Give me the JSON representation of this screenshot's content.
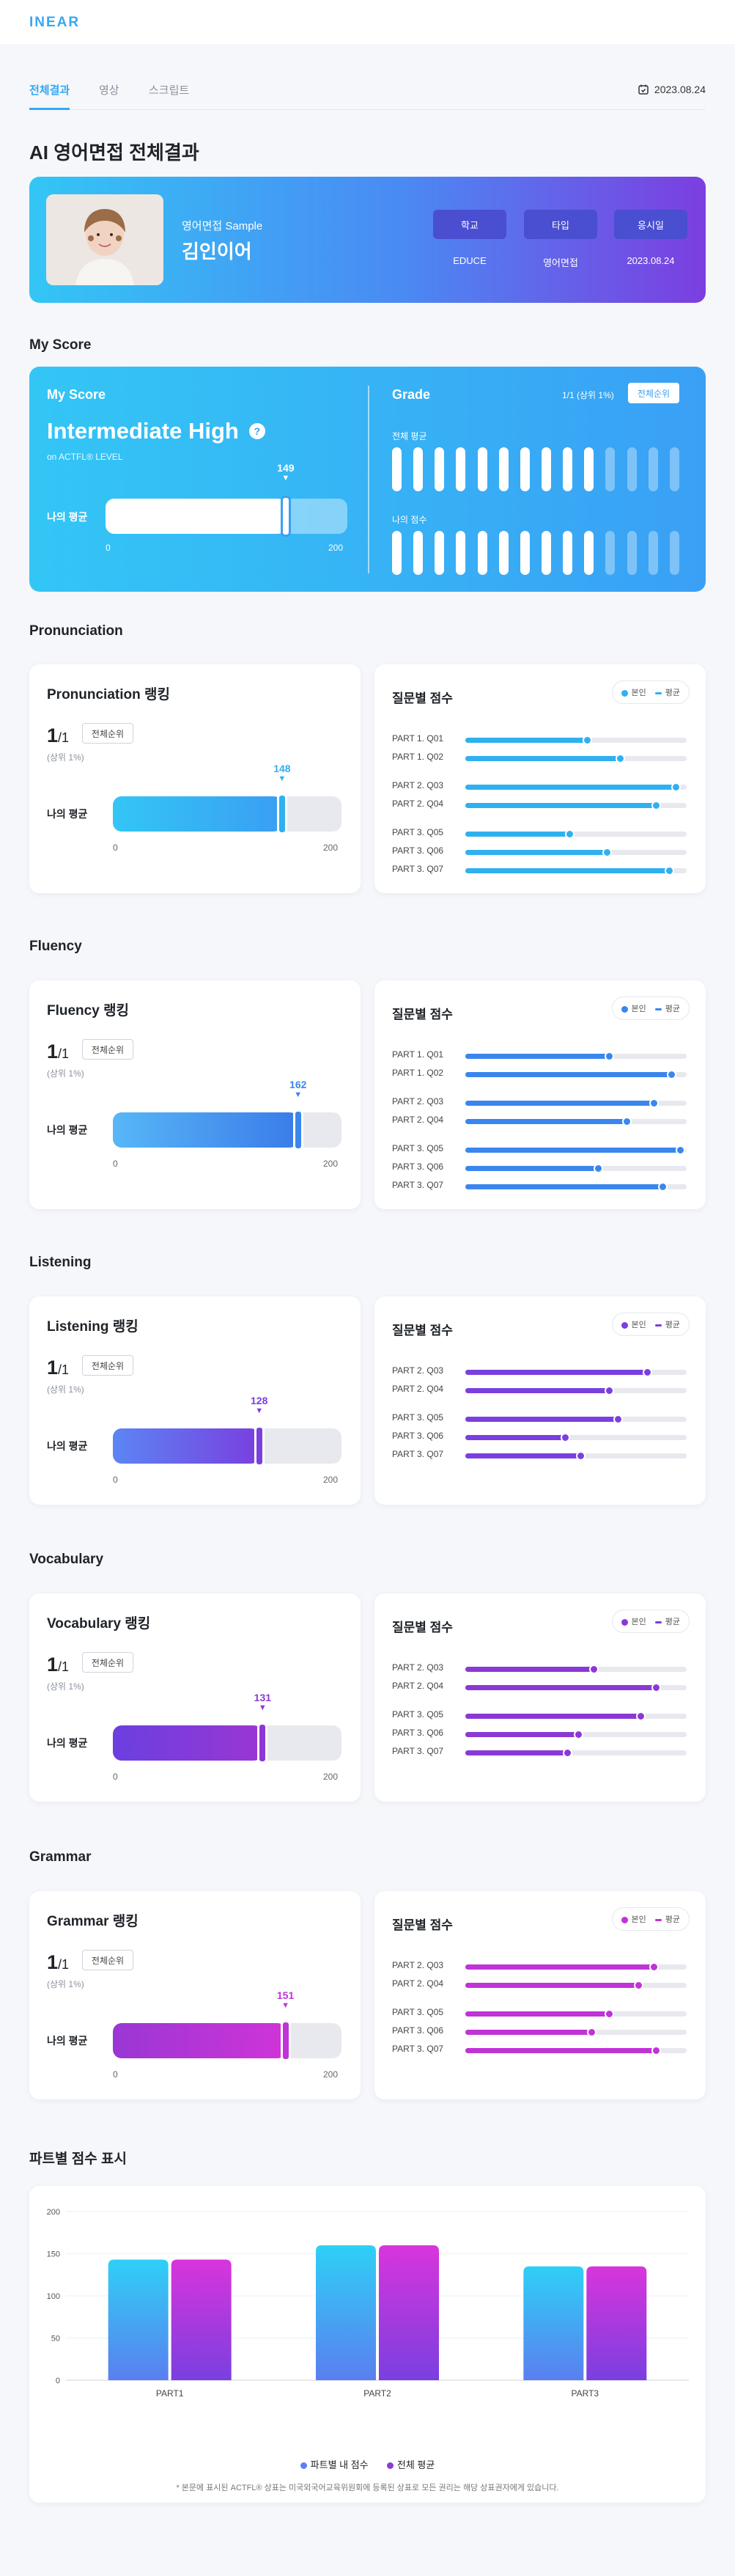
{
  "header": {
    "logo": "INEAR"
  },
  "tabs": [
    {
      "label": "전체결과",
      "active": true
    },
    {
      "label": "영상",
      "active": false
    },
    {
      "label": "스크립트",
      "active": false
    }
  ],
  "date": "2023.08.24",
  "page_title": "AI 영어면접 전체결과",
  "profile": {
    "subtitle": "영어면접 Sample",
    "name": "김인이어",
    "info": [
      {
        "label": "학교",
        "value": "EDUCE"
      },
      {
        "label": "타입",
        "value": "영어면접"
      },
      {
        "label": "응시일",
        "value": "2023.08.24"
      }
    ]
  },
  "my_score": {
    "section_title": "My Score",
    "label": "My Score",
    "level": "Intermediate High",
    "level_note": "on ACTFL® LEVEL",
    "avg_label": "나의 평균",
    "score": 149,
    "min": "0",
    "max": "200",
    "grade_title": "Grade",
    "rank": "1/1 (상위 1%)",
    "all_rank_button": "전체순위",
    "overall_avg_label": "전체 평균",
    "my_score_label": "나의 점수",
    "overall_avg_filled": 10,
    "my_score_filled": 10,
    "bar_total": 14
  },
  "legend_labels": {
    "self": "본인",
    "avg": "평균"
  },
  "question_title": "질문별 점수",
  "sections": [
    {
      "key": "pronunciation",
      "title": "Pronunciation",
      "ranking_title": "Pronunciation 랭킹",
      "rank_num": "1",
      "rank_den": "1",
      "all_rank_button": "전체순위",
      "top_pct": "(상위 1%)",
      "avg_label": "나의 평균",
      "score": 148,
      "min": "0",
      "max": "200",
      "color": "#2fb0f0",
      "fill": "linear-gradient(90deg,#33c6f5,#3a9ef3)",
      "questions": [
        {
          "label": "PART 1. Q01",
          "value": 55
        },
        {
          "label": "PART 1. Q02",
          "value": 70
        },
        {
          "label": "PART 2. Q03",
          "value": 95
        },
        {
          "label": "PART 2. Q04",
          "value": 86
        },
        {
          "label": "PART 3. Q05",
          "value": 47
        },
        {
          "label": "PART 3. Q06",
          "value": 64
        },
        {
          "label": "PART 3. Q07",
          "value": 92
        }
      ],
      "groups": [
        2,
        2,
        3
      ]
    },
    {
      "key": "fluency",
      "title": "Fluency",
      "ranking_title": "Fluency 랭킹",
      "rank_num": "1",
      "rank_den": "1",
      "all_rank_button": "전체순위",
      "top_pct": "(상위 1%)",
      "avg_label": "나의 평균",
      "score": 162,
      "min": "0",
      "max": "200",
      "color": "#3a86ee",
      "fill": "linear-gradient(90deg,#58b7f7,#3a7be9)",
      "questions": [
        {
          "label": "PART 1. Q01",
          "value": 65
        },
        {
          "label": "PART 1. Q02",
          "value": 93
        },
        {
          "label": "PART 2. Q03",
          "value": 85
        },
        {
          "label": "PART 2. Q04",
          "value": 73
        },
        {
          "label": "PART 3. Q05",
          "value": 97
        },
        {
          "label": "PART 3. Q06",
          "value": 60
        },
        {
          "label": "PART 3. Q07",
          "value": 89
        }
      ],
      "groups": [
        2,
        2,
        3
      ]
    },
    {
      "key": "listening",
      "title": "Listening",
      "ranking_title": "Listening 랭킹",
      "rank_num": "1",
      "rank_den": "1",
      "all_rank_button": "전체순위",
      "top_pct": "(상위 1%)",
      "avg_label": "나의 평균",
      "score": 128,
      "min": "0",
      "max": "200",
      "color": "#7a3fdf",
      "fill": "linear-gradient(90deg,#5b85f4,#7a3fdf)",
      "questions": [
        {
          "label": "PART 2. Q03",
          "value": 82
        },
        {
          "label": "PART 2. Q04",
          "value": 65
        },
        {
          "label": "PART 3. Q05",
          "value": 69
        },
        {
          "label": "PART 3. Q06",
          "value": 45
        },
        {
          "label": "PART 3. Q07",
          "value": 52
        }
      ],
      "groups": [
        2,
        3
      ]
    },
    {
      "key": "vocabulary",
      "title": "Vocabulary",
      "ranking_title": "Vocabulary 랭킹",
      "rank_num": "1",
      "rank_den": "1",
      "all_rank_button": "전체순위",
      "top_pct": "(상위 1%)",
      "avg_label": "나의 평균",
      "score": 131,
      "min": "0",
      "max": "200",
      "color": "#8a38d6",
      "fill": "linear-gradient(90deg,#6b3fe0,#9a36d4)",
      "questions": [
        {
          "label": "PART 2. Q03",
          "value": 58
        },
        {
          "label": "PART 2. Q04",
          "value": 86
        },
        {
          "label": "PART 3. Q05",
          "value": 79
        },
        {
          "label": "PART 3. Q06",
          "value": 51
        },
        {
          "label": "PART 3. Q07",
          "value": 46
        }
      ],
      "groups": [
        2,
        3
      ]
    },
    {
      "key": "grammar",
      "title": "Grammar",
      "ranking_title": "Grammar 랭킹",
      "rank_num": "1",
      "rank_den": "1",
      "all_rank_button": "전체순위",
      "top_pct": "(상위 1%)",
      "avg_label": "나의 평균",
      "score": 151,
      "min": "0",
      "max": "200",
      "color": "#c033d6",
      "fill": "linear-gradient(90deg,#9a36d4,#d034d8)",
      "questions": [
        {
          "label": "PART 2. Q03",
          "value": 85
        },
        {
          "label": "PART 2. Q04",
          "value": 78
        },
        {
          "label": "PART 3. Q05",
          "value": 65
        },
        {
          "label": "PART 3. Q06",
          "value": 57
        },
        {
          "label": "PART 3. Q07",
          "value": 86
        }
      ],
      "groups": [
        2,
        3
      ]
    }
  ],
  "part_chart": {
    "section_title": "파트별 점수 표시",
    "chart_data": {
      "type": "bar",
      "categories": [
        "PART1",
        "PART2",
        "PART3"
      ],
      "series": [
        {
          "name": "파트별 내 점수",
          "values": [
            143,
            160,
            135
          ]
        },
        {
          "name": "전체 평균",
          "values": [
            143,
            160,
            135
          ]
        }
      ],
      "ylim": [
        0,
        200
      ],
      "yticks": [
        0,
        50,
        100,
        150,
        200
      ],
      "grid": true,
      "legend": "bottom",
      "note": "* 본문에 표시된 ACTFL® 상표는 미국외국어교육위원회에 등록된 상표로 모든 권리는 해당 상표권자에게 있습니다."
    }
  }
}
